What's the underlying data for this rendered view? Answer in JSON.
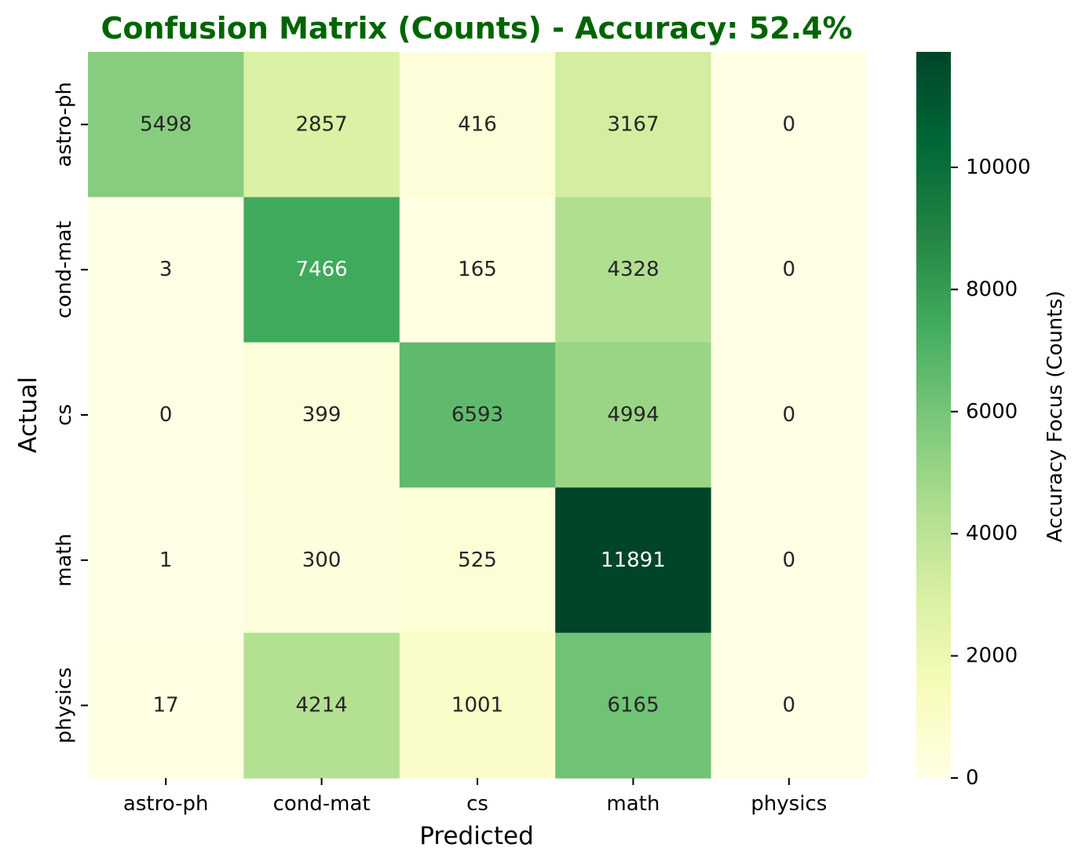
{
  "chart_data": {
    "type": "heatmap",
    "title": "Confusion Matrix (Counts) - Accuracy: 52.4%",
    "title_color": "#006400",
    "xlabel": "Predicted",
    "ylabel": "Actual",
    "x_categories": [
      "astro-ph",
      "cond-mat",
      "cs",
      "math",
      "physics"
    ],
    "y_categories": [
      "astro-ph",
      "cond-mat",
      "cs",
      "math",
      "physics"
    ],
    "values": [
      [
        5498,
        2857,
        416,
        3167,
        0
      ],
      [
        3,
        7466,
        165,
        4328,
        0
      ],
      [
        0,
        399,
        6593,
        4994,
        0
      ],
      [
        1,
        300,
        525,
        11891,
        0
      ],
      [
        17,
        4214,
        1001,
        6165,
        0
      ]
    ],
    "colormap": "YlGn",
    "value_range": [
      0,
      11891
    ],
    "colorbar": {
      "label": "Accuracy Focus (Counts)",
      "ticks": [
        0,
        2000,
        4000,
        6000,
        8000,
        10000
      ],
      "tick_labels": [
        "0",
        "2000",
        "4000",
        "6000",
        "8000",
        "10000"
      ]
    },
    "annotations": true
  }
}
